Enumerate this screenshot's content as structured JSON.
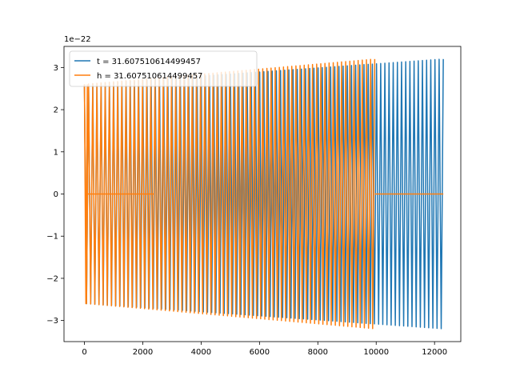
{
  "chart_data": {
    "type": "line",
    "title": "",
    "xlabel": "",
    "ylabel": "",
    "y_offset_label": "1e−22",
    "xlim": [
      -700,
      12900
    ],
    "ylim": [
      -3.5,
      3.5
    ],
    "x_ticks": [
      0,
      2000,
      4000,
      6000,
      8000,
      10000,
      12000
    ],
    "x_tick_labels": [
      "0",
      "2000",
      "4000",
      "6000",
      "8000",
      "10000",
      "12000"
    ],
    "y_ticks": [
      -3,
      -2,
      -1,
      0,
      1,
      2,
      3
    ],
    "y_tick_labels": [
      "−3",
      "−2",
      "−1",
      "0",
      "1",
      "2",
      "3"
    ],
    "grid": false,
    "legend_position": "upper-left",
    "series": [
      {
        "name": "t = 31.607510614499457",
        "color": "#1f77b4",
        "segments": [
          {
            "kind": "oscillation",
            "x_start": 0,
            "x_end": 12300,
            "cycles": 86,
            "amp_start": 2.6,
            "amp_end": 3.2
          }
        ]
      },
      {
        "name": "h = 31.607510614499457",
        "color": "#ff7f0e",
        "segments": [
          {
            "kind": "oscillation",
            "x_start": 0,
            "x_end": 100,
            "cycles": 1,
            "amp_start": 2.6,
            "amp_end": 2.6
          },
          {
            "kind": "flat",
            "x_start": 100,
            "x_end": 2400,
            "value": 0
          },
          {
            "kind": "oscillation",
            "x_start": 0,
            "x_end": 9950,
            "cycles": 70,
            "amp_start": 2.6,
            "amp_end": 3.2
          },
          {
            "kind": "flat",
            "x_start": 9950,
            "x_end": 12300,
            "value": 0
          }
        ]
      }
    ]
  }
}
